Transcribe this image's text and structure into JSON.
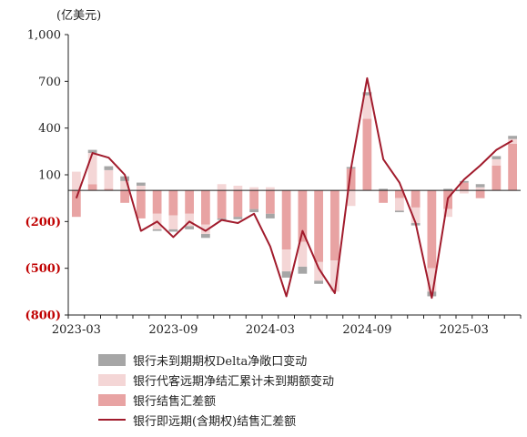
{
  "unit_label": "(亿美元)",
  "colors": {
    "delta": "#a6a6a6",
    "agency": "#f4d6d6",
    "settlement": "#e8a3a3",
    "line": "#a11b2c",
    "negative_tick": "#c00000",
    "axis": "#222222"
  },
  "chart_data": {
    "type": "bar",
    "ylim": [
      -800,
      1000
    ],
    "yticks": [
      {
        "value": 1000,
        "label": "1,000"
      },
      {
        "value": 700,
        "label": "700"
      },
      {
        "value": 400,
        "label": "400"
      },
      {
        "value": 100,
        "label": "100"
      },
      {
        "value": -200,
        "label": "(200)"
      },
      {
        "value": -500,
        "label": "(500)"
      },
      {
        "value": -800,
        "label": "(800)"
      }
    ],
    "xticks": [
      {
        "index": 0,
        "label": "2023-03"
      },
      {
        "index": 6,
        "label": "2023-09"
      },
      {
        "index": 12,
        "label": "2024-03"
      },
      {
        "index": 18,
        "label": "2024-09"
      },
      {
        "index": 24,
        "label": "2025-03"
      }
    ],
    "months": [
      "2023-03",
      "2023-04",
      "2023-05",
      "2023-06",
      "2023-07",
      "2023-08",
      "2023-09",
      "2023-10",
      "2023-11",
      "2023-12",
      "2024-01",
      "2024-02",
      "2024-03",
      "2024-04",
      "2024-05",
      "2024-06",
      "2024-07",
      "2024-08",
      "2024-09",
      "2024-10",
      "2024-11",
      "2024-12",
      "2025-01",
      "2025-02",
      "2025-03",
      "2025-04",
      "2025-05",
      "2025-06"
    ],
    "series": [
      {
        "name": "银行未到期期权Delta净敞口变动",
        "kind": "bar",
        "values": [
          0,
          20,
          25,
          30,
          20,
          -10,
          -15,
          -20,
          -25,
          -10,
          -15,
          -20,
          -30,
          -40,
          -45,
          -20,
          0,
          10,
          20,
          10,
          -10,
          -15,
          -30,
          10,
          10,
          20,
          20,
          20
        ]
      },
      {
        "name": "银行代客远期净结汇累计未到期额变动",
        "kind": "bar",
        "values": [
          120,
          200,
          120,
          60,
          30,
          -100,
          -90,
          -80,
          -60,
          40,
          30,
          20,
          20,
          -140,
          -160,
          -120,
          -200,
          -100,
          150,
          0,
          -80,
          -100,
          -150,
          -50,
          -20,
          20,
          40,
          30
        ]
      },
      {
        "name": "银行结售汇差额",
        "kind": "bar",
        "values": [
          -170,
          40,
          10,
          -80,
          -180,
          -150,
          -160,
          -150,
          -220,
          -180,
          -170,
          -120,
          -150,
          -380,
          -330,
          -460,
          -450,
          140,
          460,
          -80,
          -50,
          -110,
          -500,
          -120,
          50,
          -50,
          160,
          300
        ]
      },
      {
        "name": "银行即远期(含期权)结售汇差额",
        "kind": "line",
        "values": [
          -50,
          240,
          210,
          100,
          -260,
          -200,
          -300,
          -200,
          -260,
          -190,
          -210,
          -150,
          -360,
          -680,
          -260,
          -500,
          -660,
          140,
          720,
          200,
          50,
          -210,
          -690,
          -50,
          70,
          160,
          260,
          320
        ]
      }
    ]
  },
  "legend": [
    {
      "label": "银行未到期期权Delta净敞口变动",
      "type": "bar",
      "color": "#a6a6a6"
    },
    {
      "label": "银行代客远期净结汇累计未到期额变动",
      "type": "bar",
      "color": "#f4d6d6"
    },
    {
      "label": "银行结售汇差额",
      "type": "bar",
      "color": "#e8a3a3"
    },
    {
      "label": "银行即远期(含期权)结售汇差额",
      "type": "line",
      "color": "#a11b2c"
    }
  ]
}
